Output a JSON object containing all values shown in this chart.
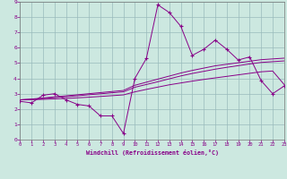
{
  "xlabel": "Windchill (Refroidissement éolien,°C)",
  "background_color": "#cce8e0",
  "line_color": "#880088",
  "grid_color": "#99bbbb",
  "x_data": [
    0,
    1,
    2,
    3,
    4,
    5,
    6,
    7,
    8,
    9,
    10,
    11,
    12,
    13,
    14,
    15,
    16,
    17,
    18,
    19,
    20,
    21,
    22,
    23
  ],
  "y_main": [
    2.5,
    2.4,
    2.9,
    3.0,
    2.6,
    2.3,
    2.2,
    1.55,
    1.55,
    0.4,
    4.0,
    5.3,
    8.8,
    8.3,
    7.4,
    5.5,
    5.9,
    6.5,
    5.9,
    5.2,
    5.4,
    3.85,
    3.0,
    3.5
  ],
  "y_line1": [
    2.6,
    2.65,
    2.72,
    2.79,
    2.86,
    2.93,
    3.0,
    3.07,
    3.14,
    3.21,
    3.55,
    3.75,
    3.95,
    4.15,
    4.35,
    4.52,
    4.67,
    4.82,
    4.92,
    5.02,
    5.12,
    5.22,
    5.27,
    5.32
  ],
  "y_line2": [
    2.6,
    2.63,
    2.68,
    2.75,
    2.8,
    2.86,
    2.93,
    2.99,
    3.06,
    3.12,
    3.42,
    3.6,
    3.78,
    3.97,
    4.16,
    4.32,
    4.46,
    4.6,
    4.72,
    4.83,
    4.94,
    5.04,
    5.09,
    5.14
  ],
  "y_line3": [
    2.6,
    2.61,
    2.63,
    2.66,
    2.69,
    2.73,
    2.77,
    2.82,
    2.87,
    2.92,
    3.12,
    3.28,
    3.43,
    3.58,
    3.7,
    3.82,
    3.93,
    4.03,
    4.13,
    4.23,
    4.33,
    4.43,
    4.48,
    3.6
  ],
  "xlim": [
    0,
    23
  ],
  "ylim": [
    0,
    9
  ],
  "xticks": [
    0,
    1,
    2,
    3,
    4,
    5,
    6,
    7,
    8,
    9,
    10,
    11,
    12,
    13,
    14,
    15,
    16,
    17,
    18,
    19,
    20,
    21,
    22,
    23
  ],
  "yticks": [
    0,
    1,
    2,
    3,
    4,
    5,
    6,
    7,
    8,
    9
  ]
}
